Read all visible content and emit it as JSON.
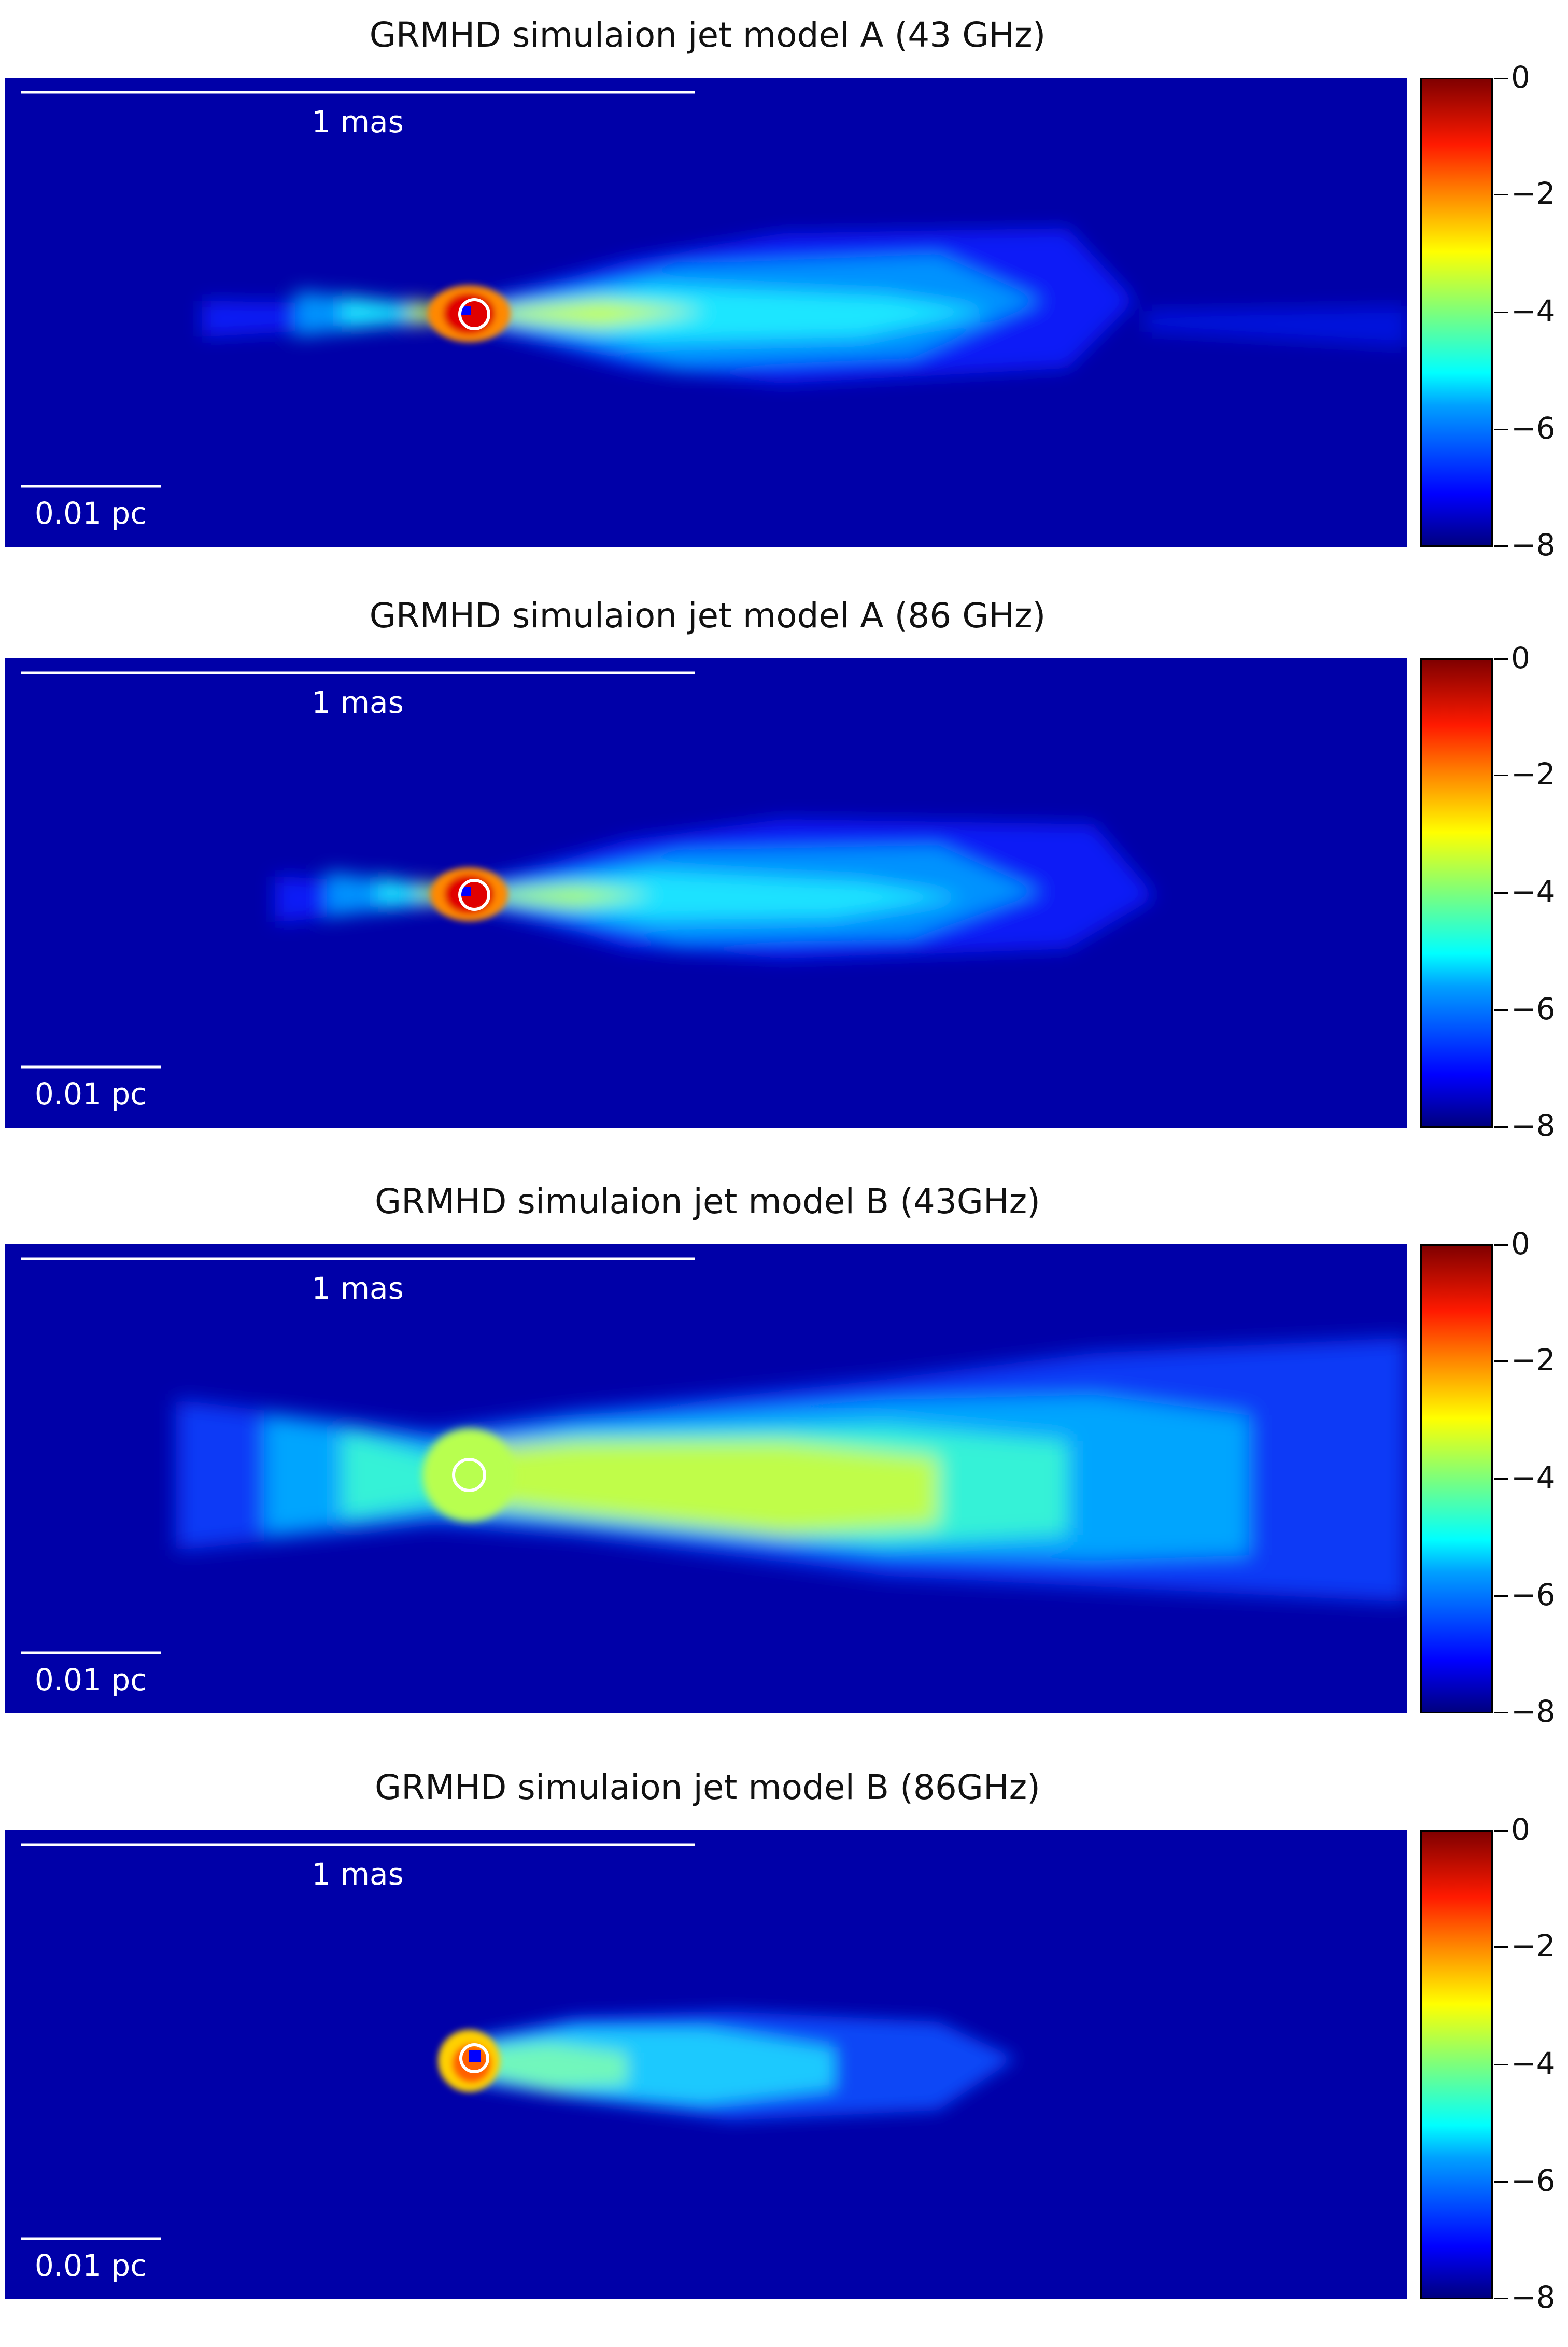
{
  "panels": [
    {
      "title": "GRMHD simulaion jet model A (43 GHz)",
      "top_bar_label": "1 mas",
      "bottom_bar_label": "0.01 pc"
    },
    {
      "title": "GRMHD simulaion jet model A (86 GHz)",
      "top_bar_label": "1 mas",
      "bottom_bar_label": "0.01 pc"
    },
    {
      "title": "GRMHD simulaion jet model B (43GHz)",
      "top_bar_label": "1 mas",
      "bottom_bar_label": "0.01 pc"
    },
    {
      "title": "GRMHD simulaion jet model B (86GHz)",
      "top_bar_label": "1 mas",
      "bottom_bar_label": "0.01 pc"
    }
  ],
  "colorbar": {
    "ticks": [
      "0",
      "−2",
      "−4",
      "−6",
      "−8"
    ],
    "range": [
      -8,
      0
    ],
    "colormap": "jet"
  },
  "colors": {
    "background_map": "#0000a8",
    "marker": "#ffffff"
  }
}
